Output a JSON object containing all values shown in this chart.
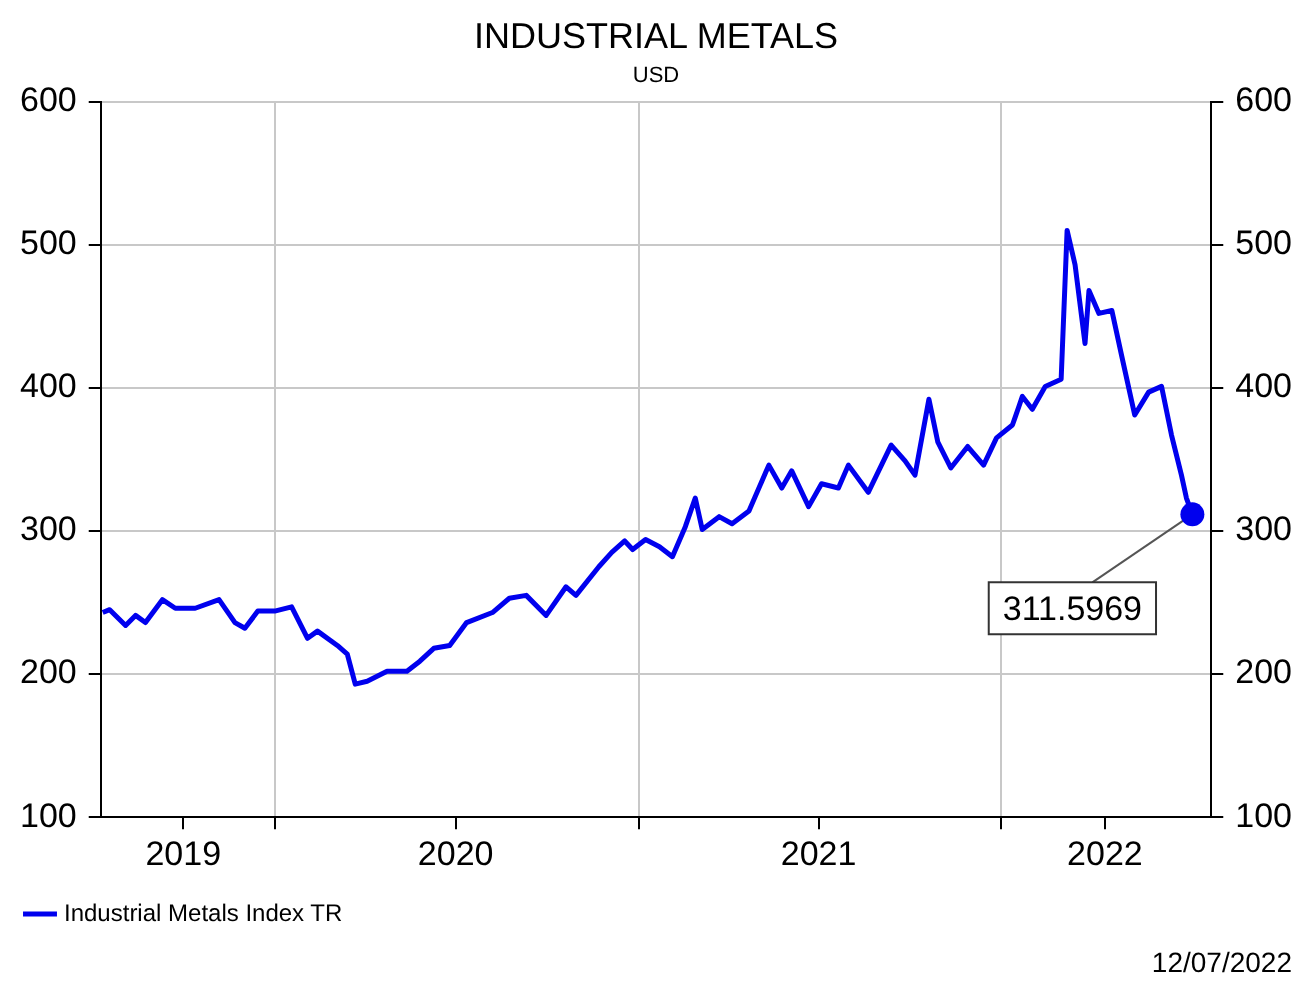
{
  "chart_data": {
    "type": "line",
    "title": "INDUSTRIAL METALS",
    "subtitle": "USD",
    "x": [
      "2019-07-12",
      "2019-07-19",
      "2019-08-04",
      "2019-08-14",
      "2019-08-24",
      "2019-09-10",
      "2019-09-23",
      "2019-10-13",
      "2019-11-06",
      "2019-11-22",
      "2019-12-02",
      "2019-12-15",
      "2020-01-01",
      "2020-01-18",
      "2020-02-03",
      "2020-02-13",
      "2020-03-04",
      "2020-03-14",
      "2020-03-22",
      "2020-04-03",
      "2020-04-23",
      "2020-05-13",
      "2020-05-26",
      "2020-06-09",
      "2020-06-25",
      "2020-07-12",
      "2020-08-07",
      "2020-08-24",
      "2020-09-10",
      "2020-09-30",
      "2020-10-20",
      "2020-10-30",
      "2020-11-22",
      "2020-12-05",
      "2020-12-18",
      "2020-12-26",
      "2021-01-08",
      "2021-01-22",
      "2021-02-04",
      "2021-02-17",
      "2021-02-27",
      "2021-03-06",
      "2021-03-23",
      "2021-04-05",
      "2021-04-22",
      "2021-05-12",
      "2021-05-25",
      "2021-06-04",
      "2021-06-21",
      "2021-07-04",
      "2021-07-21",
      "2021-07-31",
      "2021-08-20",
      "2021-09-12",
      "2021-09-26",
      "2021-10-06",
      "2021-10-20",
      "2021-10-29",
      "2021-11-11",
      "2021-11-28",
      "2021-12-14",
      "2021-12-27",
      "2022-01-12",
      "2022-01-22",
      "2022-02-01",
      "2022-02-14",
      "2022-03-02",
      "2022-03-08",
      "2022-03-16",
      "2022-03-26",
      "2022-03-30",
      "2022-04-09",
      "2022-04-22",
      "2022-05-02",
      "2022-05-15",
      "2022-05-29",
      "2022-06-11",
      "2022-06-21",
      "2022-07-01",
      "2022-07-06",
      "2022-07-12"
    ],
    "series": [
      {
        "name": "Industrial Metals Index TR",
        "color": "#0000ee",
        "values": [
          243,
          245,
          234,
          241,
          236,
          252,
          246,
          246,
          252,
          236,
          232,
          244,
          244,
          247,
          225,
          230,
          220,
          214,
          193,
          195,
          202,
          202,
          209,
          218,
          220,
          236,
          243,
          253,
          255,
          241,
          261,
          255,
          275,
          285,
          293,
          287,
          294,
          289,
          282,
          303,
          323,
          301,
          310,
          305,
          314,
          346,
          330,
          342,
          317,
          333,
          330,
          346,
          327,
          360,
          349,
          339,
          392,
          362,
          344,
          359,
          346,
          365,
          374,
          394,
          385,
          401,
          406,
          510,
          486,
          431,
          468,
          452,
          454,
          422,
          381,
          397,
          401,
          367,
          339,
          323,
          311.5969
        ]
      }
    ],
    "xlim": [
      "2019-07-10",
      "2022-07-31"
    ],
    "xticks": [
      {
        "value": "2019-10-01",
        "label": "2019"
      },
      {
        "value": "2020-01-01",
        "label": null
      },
      {
        "value": "2020-07-01",
        "label": "2020"
      },
      {
        "value": "2021-01-01",
        "label": null
      },
      {
        "value": "2021-07-01",
        "label": "2021"
      },
      {
        "value": "2022-01-01",
        "label": null
      },
      {
        "value": "2022-04-15",
        "label": "2022"
      }
    ],
    "ylim": [
      100,
      600
    ],
    "yticks": [
      100,
      200,
      300,
      400,
      500,
      600
    ],
    "y2lim": [
      100,
      600
    ],
    "y2ticks": [
      100,
      200,
      300,
      400,
      500,
      600
    ],
    "grid": true,
    "legend": "bottom left",
    "marker": "none",
    "line_style": "solid",
    "annotations": [
      {
        "text": "311.5969",
        "x": "2022-07-12",
        "y": 311.5969
      },
      "12/07/2022"
    ]
  }
}
